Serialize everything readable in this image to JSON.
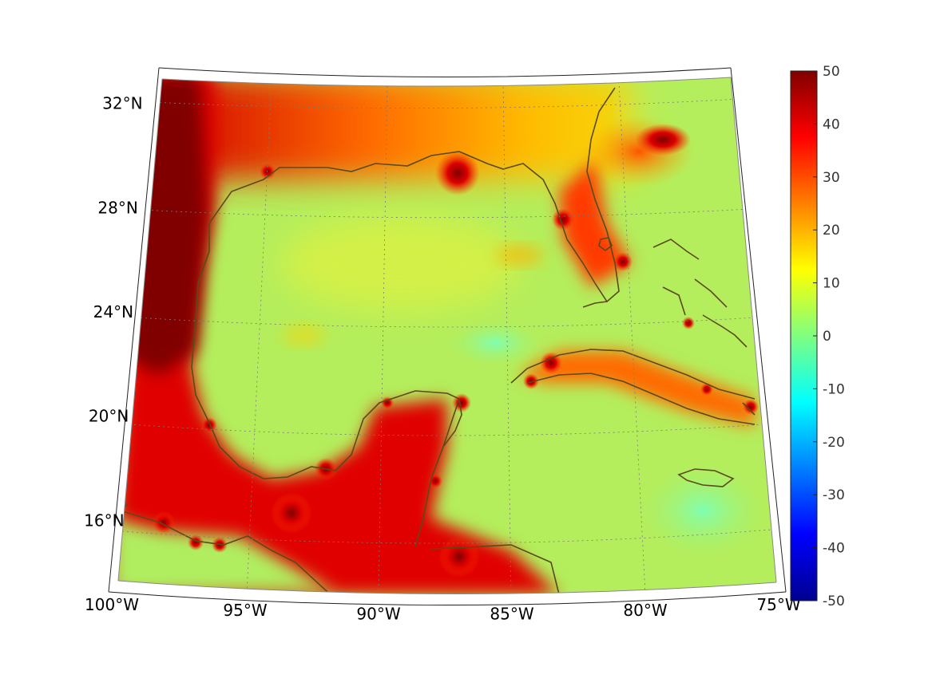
{
  "map": {
    "projection": "conic",
    "lon_range": [
      -100,
      -75
    ],
    "lat_range": [
      13.5,
      33
    ],
    "lon_ticks": [
      {
        "value": -100,
        "label": "100°W"
      },
      {
        "value": -95,
        "label": "95°W"
      },
      {
        "value": -90,
        "label": "90°W"
      },
      {
        "value": -85,
        "label": "85°W"
      },
      {
        "value": -80,
        "label": "80°W"
      },
      {
        "value": -75,
        "label": "75°W"
      }
    ],
    "lat_ticks": [
      {
        "value": 32,
        "label": "32°N"
      },
      {
        "value": 28,
        "label": "28°N"
      },
      {
        "value": 24,
        "label": "24°N"
      },
      {
        "value": 20,
        "label": "20°N"
      },
      {
        "value": 16,
        "label": "16°N"
      }
    ],
    "grid": "dotted",
    "coastline_color": "#5a4a1a",
    "colormap": "jet"
  },
  "colorbar": {
    "min": -50,
    "max": 50,
    "ticks": [
      50,
      40,
      30,
      20,
      10,
      0,
      -10,
      -20,
      -30,
      -40,
      -50
    ],
    "tick_labels": [
      "50",
      "40",
      "30",
      "20",
      "10",
      "0",
      "-10",
      "-20",
      "-30",
      "-40",
      "-50"
    ]
  }
}
